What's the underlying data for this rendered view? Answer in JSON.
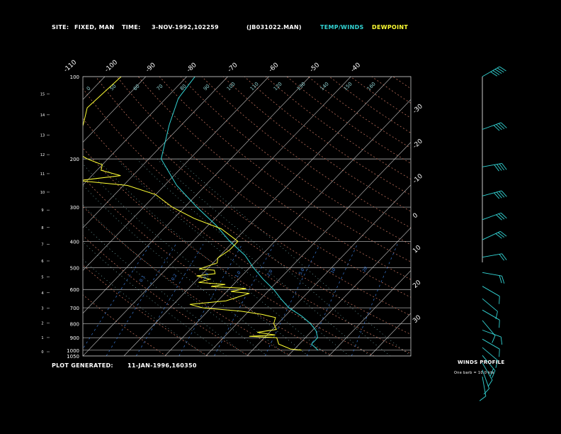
{
  "header": {
    "site_label": "SITE:",
    "site_value": "FIXED, MAN",
    "time_label": "TIME:",
    "time_value": "3-NOV-1992,102259",
    "file": "(JB031022.MAN)",
    "legend_temp": "TEMP/WINDS",
    "legend_dew": "DEWPOINT"
  },
  "footer": {
    "generated_label": "PLOT GENERATED:",
    "generated_value": "11-JAN-1996,160350"
  },
  "wind_panel": {
    "title": "WINDS PROFILE",
    "note": "One barb = 10.0 kts"
  },
  "colors": {
    "background": "#000000",
    "temp": "#33d6d6",
    "dew": "#ffff33",
    "isobar": "#c8c8c8",
    "isotherm": "#c8c8c8",
    "dry_adiabat": "#d27a64",
    "moist_adiabat": "#8fd1d1",
    "mixing_ratio": "#3a7ad6",
    "labels": "#ffffff"
  },
  "chart_data": {
    "type": "line",
    "x_unit": "°C",
    "y_unit": "hPa",
    "xlim": [
      -40,
      40
    ],
    "ylim": [
      1050,
      100
    ],
    "pressure_labels": [
      "100",
      "200",
      "300",
      "400",
      "500",
      "600",
      "700",
      "800",
      "900",
      "1000",
      "1050"
    ],
    "pressure_levels": [
      100,
      200,
      300,
      400,
      500,
      600,
      700,
      800,
      900,
      1000,
      1050
    ],
    "altitude_labels": [
      "0",
      "1",
      "2",
      "3",
      "4",
      "5",
      "6",
      "7",
      "8",
      "9",
      "10",
      "11",
      "12",
      "13",
      "14",
      "15"
    ],
    "altitude_km": [
      0,
      1,
      2,
      3,
      4,
      5,
      6,
      7,
      8,
      9,
      10,
      11,
      12,
      13,
      14,
      15
    ],
    "top_isotherm_labels": [
      "-110",
      "-100",
      "-90",
      "-80",
      "-70",
      "-60",
      "-50",
      "-40"
    ],
    "top_isotherms": [
      -110,
      -100,
      -90,
      -80,
      -70,
      -60,
      -50,
      -40
    ],
    "right_isotherm_labels": [
      "-30",
      "-20",
      "-10",
      "0",
      "10",
      "20",
      "30"
    ],
    "right_isotherms": [
      -30,
      -20,
      -10,
      0,
      10,
      20,
      30
    ],
    "theta_labels": [
      "0",
      "50",
      "60",
      "70",
      "80",
      "90",
      "100",
      "110",
      "120",
      "130",
      "140",
      "150",
      "160"
    ],
    "mixing_ratio_labels": [
      "0.1",
      "0.2",
      "0.4",
      "1.0",
      "2.0",
      "5.0",
      "10",
      "20"
    ],
    "series": [
      {
        "name": "TEMP/WINDS",
        "points": [
          [
            -78,
            100
          ],
          [
            -77,
            120
          ],
          [
            -73,
            150
          ],
          [
            -67,
            200
          ],
          [
            -57,
            250
          ],
          [
            -47,
            300
          ],
          [
            -38,
            350
          ],
          [
            -31,
            400
          ],
          [
            -24,
            450
          ],
          [
            -19,
            500
          ],
          [
            -14,
            550
          ],
          [
            -9,
            600
          ],
          [
            -5,
            650
          ],
          [
            -1,
            700
          ],
          [
            4,
            750
          ],
          [
            8,
            800
          ],
          [
            11,
            850
          ],
          [
            13,
            900
          ],
          [
            13,
            950
          ],
          [
            16,
            1000
          ]
        ]
      },
      {
        "name": "DEWPOINT",
        "points": [
          [
            -96,
            100
          ],
          [
            -97,
            130
          ],
          [
            -94,
            150
          ],
          [
            -92,
            170
          ],
          [
            -89,
            190
          ],
          [
            -85,
            200
          ],
          [
            -80,
            210
          ],
          [
            -79,
            220
          ],
          [
            -73,
            230
          ],
          [
            -82,
            240
          ],
          [
            -69,
            250
          ],
          [
            -60,
            270
          ],
          [
            -53,
            300
          ],
          [
            -45,
            330
          ],
          [
            -36,
            360
          ],
          [
            -29,
            400
          ],
          [
            -29,
            430
          ],
          [
            -30,
            460
          ],
          [
            -29,
            480
          ],
          [
            -32,
            505
          ],
          [
            -28,
            510
          ],
          [
            -27,
            525
          ],
          [
            -31,
            535
          ],
          [
            -27,
            550
          ],
          [
            -29,
            565
          ],
          [
            -22,
            575
          ],
          [
            -25,
            585
          ],
          [
            -16,
            595
          ],
          [
            -19,
            610
          ],
          [
            -14,
            620
          ],
          [
            -16,
            640
          ],
          [
            -18,
            660
          ],
          [
            -26,
            680
          ],
          [
            -22,
            700
          ],
          [
            -12,
            720
          ],
          [
            -6,
            740
          ],
          [
            -2,
            760
          ],
          [
            -1,
            800
          ],
          [
            1,
            840
          ],
          [
            -3,
            860
          ],
          [
            2,
            880
          ],
          [
            -4,
            890
          ],
          [
            3,
            900
          ],
          [
            5,
            950
          ],
          [
            9,
            990
          ],
          [
            12,
            1000
          ]
        ]
      }
    ],
    "winds": [
      {
        "p": 100,
        "spd": 45,
        "dir": 240
      },
      {
        "p": 150,
        "spd": 40,
        "dir": 250
      },
      {
        "p": 200,
        "spd": 35,
        "dir": 260
      },
      {
        "p": 250,
        "spd": 35,
        "dir": 255
      },
      {
        "p": 300,
        "spd": 30,
        "dir": 250
      },
      {
        "p": 350,
        "spd": 25,
        "dir": 245
      },
      {
        "p": 400,
        "spd": 20,
        "dir": 260
      },
      {
        "p": 450,
        "spd": 15,
        "dir": 280
      },
      {
        "p": 500,
        "spd": 10,
        "dir": 300
      },
      {
        "p": 550,
        "spd": 10,
        "dir": 310
      },
      {
        "p": 600,
        "spd": 10,
        "dir": 300
      },
      {
        "p": 650,
        "spd": 10,
        "dir": 320
      },
      {
        "p": 700,
        "spd": 5,
        "dir": 290
      },
      {
        "p": 750,
        "spd": 10,
        "dir": 300
      },
      {
        "p": 800,
        "spd": 10,
        "dir": 310
      },
      {
        "p": 850,
        "spd": 15,
        "dir": 320
      },
      {
        "p": 900,
        "spd": 10,
        "dir": 330
      },
      {
        "p": 950,
        "spd": 10,
        "dir": 340
      },
      {
        "p": 1000,
        "spd": 5,
        "dir": 350
      }
    ]
  }
}
